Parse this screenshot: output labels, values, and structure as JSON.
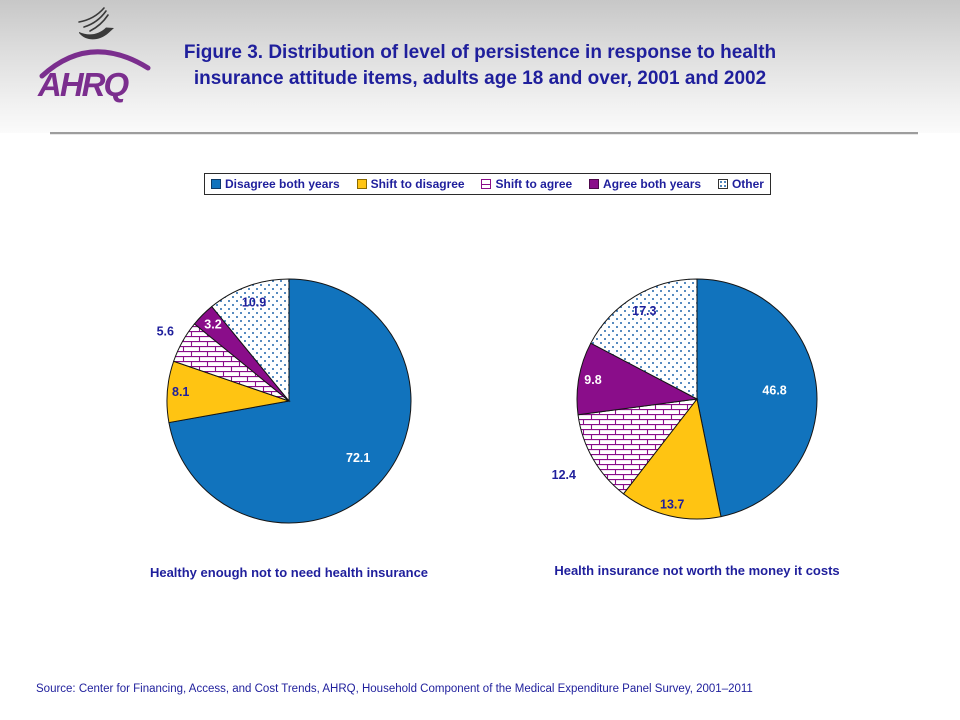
{
  "header": {
    "title": "Figure 3. Distribution of level of persistence in response to health insurance attitude items, adults age 18 and over, 2001 and 2002",
    "logo_text": "AHRQ"
  },
  "legend": {
    "items": [
      {
        "label": "Disagree both years",
        "swatch": "solid-blue"
      },
      {
        "label": "Shift to disagree",
        "swatch": "solid-yellow"
      },
      {
        "label": "Shift to agree",
        "swatch": "brick-pattern"
      },
      {
        "label": "Agree both years",
        "swatch": "solid-purple"
      },
      {
        "label": "Other",
        "swatch": "dot-pattern"
      }
    ]
  },
  "chart_data": [
    {
      "type": "pie",
      "title": "Healthy enough not to need health insurance",
      "categories": [
        "Disagree both years",
        "Shift to disagree",
        "Shift to agree",
        "Agree both years",
        "Other"
      ],
      "values": [
        72.1,
        8.1,
        5.6,
        3.2,
        10.9
      ],
      "start_angle_deg": 0,
      "direction": "clockwise",
      "legend_position": "top"
    },
    {
      "type": "pie",
      "title": "Health insurance not worth the money it costs",
      "categories": [
        "Disagree both years",
        "Shift to disagree",
        "Shift to agree",
        "Agree both years",
        "Other"
      ],
      "values": [
        46.8,
        13.7,
        12.4,
        9.8,
        17.3
      ],
      "start_angle_deg": 0,
      "direction": "clockwise",
      "legend_position": "top"
    }
  ],
  "footer": {
    "source": "Source: Center for Financing, Access, and Cost Trends, AHRQ, Household Component of the Medical Expenditure Panel Survey, 2001–2011"
  },
  "colors": {
    "title_text": "#1F1F9C",
    "slice_blue": "#1173BD",
    "slice_yellow": "#FFC412",
    "slice_purple": "#8A0D8A",
    "pattern_line": "#8A0D8A",
    "pattern_dot": "#2166AC",
    "label_on_dark": "#FFFFFF",
    "label_on_light": "#1F1F9C"
  }
}
